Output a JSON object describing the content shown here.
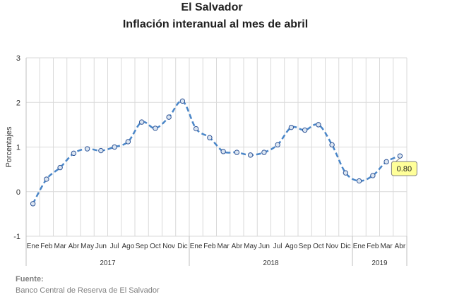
{
  "chart_data": {
    "type": "line",
    "title": "El Salvador",
    "subtitle": "Inflación interanual al mes de abril",
    "ylabel": "Porcentajes",
    "xlabel": "",
    "ylim": [
      -1,
      3
    ],
    "yticks": [
      "3",
      "2",
      "1",
      "0",
      "-1"
    ],
    "grid": true,
    "legend": "none",
    "categories": [
      "Ene",
      "Feb",
      "Mar",
      "Abr",
      "May",
      "Jun",
      "Jul",
      "Ago",
      "Sep",
      "Oct",
      "Nov",
      "Dic",
      "Ene",
      "Feb",
      "Mar",
      "Abr",
      "May",
      "Jun",
      "Jul",
      "Ago",
      "Sep",
      "Oct",
      "Nov",
      "Dic",
      "Ene",
      "Feb",
      "Mar",
      "Abr"
    ],
    "years": [
      {
        "label": "2017",
        "months": 12
      },
      {
        "label": "2018",
        "months": 12
      },
      {
        "label": "2019",
        "months": 4
      }
    ],
    "values": [
      -0.27,
      0.28,
      0.54,
      0.86,
      0.96,
      0.92,
      1.0,
      1.12,
      1.56,
      1.42,
      1.67,
      2.03,
      1.41,
      1.21,
      0.9,
      0.88,
      0.82,
      0.88,
      1.05,
      1.44,
      1.38,
      1.5,
      1.05,
      0.42,
      0.24,
      0.36,
      0.67,
      0.8
    ],
    "data_label": "0.80",
    "line_color": "#4a86c8",
    "marker_fill": "#dce6f2",
    "label_fill": "#ffff99"
  },
  "source": {
    "label": "Fuente:",
    "text": "Banco Central de Reserva de El Salvador"
  }
}
